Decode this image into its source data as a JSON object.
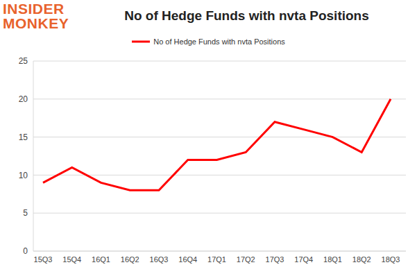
{
  "chart_data": {
    "type": "line",
    "title": "No of Hedge Funds with nvta Positions",
    "categories": [
      "15Q3",
      "15Q4",
      "16Q1",
      "16Q2",
      "16Q3",
      "16Q4",
      "17Q1",
      "17Q2",
      "17Q3",
      "17Q4",
      "18Q1",
      "18Q2",
      "18Q3"
    ],
    "series": [
      {
        "name": "No of Hedge Funds with nvta Positions",
        "color": "#ff0000",
        "values": [
          9,
          11,
          9,
          8,
          8,
          12,
          12,
          13,
          17,
          16,
          15,
          13,
          20
        ]
      }
    ],
    "ylim": [
      0,
      25
    ],
    "yticks": [
      0,
      5,
      10,
      15,
      20,
      25
    ],
    "grid": true,
    "legend": "top",
    "annotations": [
      "INSIDER",
      "MONKEY"
    ]
  }
}
